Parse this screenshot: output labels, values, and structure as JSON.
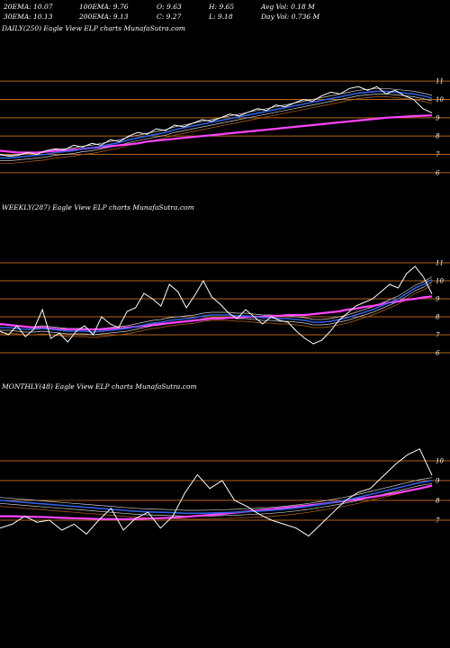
{
  "header": {
    "r1": [
      "20EMA: 10.07",
      "100EMA: 9.76",
      "O: 9.63",
      "H: 9.65",
      "Avg Vol: 0.18  M"
    ],
    "r2": [
      "30EMA: 10.13",
      "200EMA: 9.13",
      "C: 9.27",
      "L: 9.18",
      "Day Vol: 0.736  M"
    ]
  },
  "chart_data": [
    {
      "type": "line",
      "label": "DAILY(250) Eagle  View  ELP charts MunafaSutra.com",
      "yticks": [
        6,
        7,
        8,
        9,
        10,
        11
      ],
      "ylim": [
        5.6,
        11.5
      ],
      "grid": "horizontal",
      "colors": {
        "price": "#ffffff",
        "ema_fast": "#2f5fe0",
        "ema_slow": "#ff44ff",
        "grid": "#b5651d"
      },
      "price": [
        7.0,
        6.9,
        6.95,
        7.1,
        7.0,
        7.2,
        7.3,
        7.25,
        7.5,
        7.4,
        7.6,
        7.5,
        7.8,
        7.7,
        8.0,
        8.2,
        8.1,
        8.4,
        8.3,
        8.6,
        8.5,
        8.7,
        8.9,
        8.8,
        9.0,
        9.2,
        9.1,
        9.3,
        9.5,
        9.4,
        9.7,
        9.6,
        9.8,
        10.0,
        9.9,
        10.2,
        10.4,
        10.3,
        10.6,
        10.7,
        10.5,
        10.7,
        10.3,
        10.5,
        10.2,
        10.0,
        9.5,
        9.27
      ],
      "ema_fast": [
        6.8,
        6.8,
        6.85,
        6.9,
        6.95,
        7.0,
        7.1,
        7.15,
        7.2,
        7.3,
        7.35,
        7.45,
        7.55,
        7.65,
        7.8,
        7.9,
        8.0,
        8.1,
        8.2,
        8.35,
        8.45,
        8.55,
        8.65,
        8.75,
        8.85,
        8.95,
        9.05,
        9.15,
        9.25,
        9.35,
        9.45,
        9.55,
        9.65,
        9.75,
        9.85,
        9.95,
        10.05,
        10.15,
        10.25,
        10.35,
        10.4,
        10.45,
        10.45,
        10.4,
        10.35,
        10.3,
        10.2,
        10.07
      ],
      "ema_slow": [
        7.2,
        7.15,
        7.1,
        7.1,
        7.1,
        7.15,
        7.2,
        7.2,
        7.25,
        7.3,
        7.35,
        7.4,
        7.45,
        7.5,
        7.55,
        7.6,
        7.7,
        7.75,
        7.8,
        7.85,
        7.9,
        7.95,
        8.0,
        8.05,
        8.1,
        8.15,
        8.2,
        8.25,
        8.3,
        8.35,
        8.4,
        8.45,
        8.5,
        8.55,
        8.6,
        8.65,
        8.7,
        8.75,
        8.8,
        8.85,
        8.9,
        8.95,
        9.0,
        9.03,
        9.06,
        9.09,
        9.11,
        9.13
      ]
    },
    {
      "type": "line",
      "label": "WEEKLY(287) Eagle  View  ELP charts MunafaSutra.com",
      "yticks": [
        6,
        7,
        8,
        9,
        10,
        11
      ],
      "ylim": [
        5.6,
        11.5
      ],
      "grid": "horizontal",
      "colors": {
        "price": "#ffffff",
        "ema_fast": "#2f5fe0",
        "ema_slow": "#ff44ff",
        "grid": "#b5651d"
      },
      "price": [
        7.2,
        7.0,
        7.5,
        6.9,
        7.3,
        8.4,
        6.8,
        7.1,
        6.6,
        7.2,
        7.5,
        7.0,
        8.0,
        7.6,
        7.4,
        8.3,
        8.5,
        9.3,
        9.0,
        8.6,
        9.8,
        9.4,
        8.5,
        9.2,
        10.0,
        9.1,
        8.7,
        8.2,
        7.9,
        8.4,
        8.0,
        7.6,
        8.0,
        7.8,
        7.7,
        7.2,
        6.8,
        6.5,
        6.7,
        7.2,
        7.8,
        8.2,
        8.6,
        8.8,
        9.0,
        9.4,
        9.8,
        9.6,
        10.4,
        10.8,
        10.2,
        9.27
      ],
      "ema_fast": [
        7.4,
        7.4,
        7.35,
        7.3,
        7.3,
        7.35,
        7.3,
        7.25,
        7.2,
        7.2,
        7.2,
        7.15,
        7.2,
        7.25,
        7.3,
        7.35,
        7.45,
        7.55,
        7.65,
        7.7,
        7.8,
        7.85,
        7.9,
        7.95,
        8.05,
        8.1,
        8.1,
        8.1,
        8.05,
        8.05,
        8.0,
        7.95,
        7.95,
        7.9,
        7.9,
        7.85,
        7.8,
        7.7,
        7.7,
        7.75,
        7.85,
        7.95,
        8.1,
        8.25,
        8.4,
        8.6,
        8.8,
        9.0,
        9.3,
        9.6,
        9.8,
        10.07
      ],
      "ema_slow": [
        7.6,
        7.55,
        7.5,
        7.45,
        7.4,
        7.4,
        7.35,
        7.3,
        7.3,
        7.3,
        7.3,
        7.3,
        7.3,
        7.35,
        7.35,
        7.4,
        7.45,
        7.5,
        7.55,
        7.6,
        7.65,
        7.7,
        7.75,
        7.8,
        7.85,
        7.9,
        7.9,
        7.95,
        7.95,
        8.0,
        8.0,
        8.0,
        8.05,
        8.05,
        8.1,
        8.1,
        8.1,
        8.15,
        8.2,
        8.25,
        8.3,
        8.4,
        8.45,
        8.55,
        8.6,
        8.7,
        8.8,
        8.85,
        8.95,
        9.0,
        9.08,
        9.13
      ]
    },
    {
      "type": "line",
      "label": "MONTHLY(48) Eagle  View  ELP charts MunafaSutra.com",
      "yticks": [
        7,
        8,
        9,
        10
      ],
      "ylim": [
        6.0,
        11.0
      ],
      "grid": "horizontal",
      "colors": {
        "price": "#ffffff",
        "ema_fast": "#2f5fe0",
        "ema_slow": "#ff44ff",
        "grid": "#b5651d"
      },
      "price": [
        6.6,
        6.8,
        7.2,
        6.9,
        7.0,
        6.5,
        6.8,
        6.3,
        7.0,
        7.6,
        6.5,
        7.1,
        7.4,
        6.6,
        7.2,
        8.4,
        9.3,
        8.6,
        9.0,
        8.0,
        7.7,
        7.3,
        7.0,
        6.8,
        6.6,
        6.2,
        6.8,
        7.4,
        8.0,
        8.4,
        8.6,
        9.2,
        9.8,
        10.3,
        10.6,
        9.27
      ],
      "ema_fast": [
        8.0,
        7.95,
        7.9,
        7.85,
        7.8,
        7.75,
        7.7,
        7.65,
        7.6,
        7.55,
        7.5,
        7.45,
        7.42,
        7.4,
        7.38,
        7.35,
        7.35,
        7.36,
        7.38,
        7.4,
        7.43,
        7.46,
        7.5,
        7.55,
        7.62,
        7.7,
        7.8,
        7.9,
        8.02,
        8.15,
        8.3,
        8.45,
        8.6,
        8.75,
        8.9,
        9.0
      ],
      "ema_slow": [
        7.2,
        7.2,
        7.18,
        7.17,
        7.15,
        7.12,
        7.1,
        7.08,
        7.06,
        7.05,
        7.05,
        7.06,
        7.08,
        7.1,
        7.13,
        7.17,
        7.22,
        7.27,
        7.32,
        7.38,
        7.44,
        7.5,
        7.56,
        7.62,
        7.68,
        7.75,
        7.82,
        7.9,
        7.98,
        8.07,
        8.16,
        8.26,
        8.36,
        8.48,
        8.6,
        8.75
      ]
    }
  ]
}
